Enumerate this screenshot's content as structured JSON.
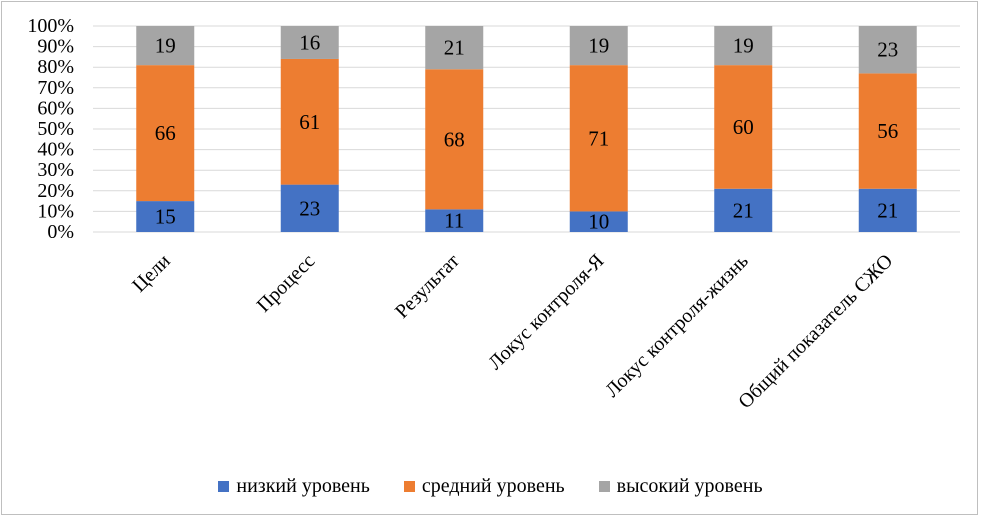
{
  "chart_data": {
    "type": "bar",
    "stacked": true,
    "percent_stacked": true,
    "categories": [
      "Цели",
      "Процесс",
      "Результат",
      "Локус контроля-Я",
      "Локус контроля-жизнь",
      "Общий показатель СЖО"
    ],
    "series": [
      {
        "name": "низкий уровень",
        "color": "#4472C4",
        "values": [
          15,
          23,
          11,
          10,
          21,
          21
        ]
      },
      {
        "name": "средний уровень",
        "color": "#ED7D31",
        "values": [
          66,
          61,
          68,
          71,
          60,
          56
        ]
      },
      {
        "name": "высокий уровень",
        "color": "#A5A5A5",
        "values": [
          19,
          16,
          21,
          19,
          19,
          23
        ]
      }
    ],
    "ylim": [
      0,
      100
    ],
    "yticks": [
      "0%",
      "10%",
      "20%",
      "30%",
      "40%",
      "50%",
      "60%",
      "70%",
      "80%",
      "90%",
      "100%"
    ],
    "grid": true,
    "legend_position": "bottom",
    "title": "",
    "xlabel": "",
    "ylabel": ""
  }
}
